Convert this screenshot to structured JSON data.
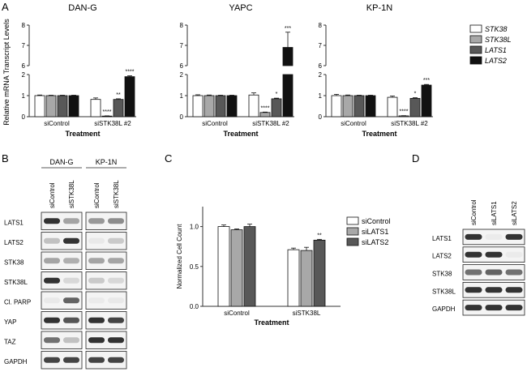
{
  "panel_labels": {
    "a": "A",
    "b": "B",
    "c": "C",
    "d": "D"
  },
  "colors": {
    "white": "#ffffff",
    "light_gray": "#a8a8a8",
    "dark_gray": "#585858",
    "black": "#111111"
  },
  "chart_data": [
    {
      "type": "bar",
      "panel": "A",
      "title": "DAN-G",
      "ylabel": "Relative mRNA Transcript Levels",
      "xlabel": "Treatment",
      "categories": [
        "siControl",
        "siSTK38L #2"
      ],
      "y_axis_break": {
        "lower": [
          0,
          2
        ],
        "upper": [
          6,
          8
        ]
      },
      "y_ticks": [
        "0",
        "1",
        "2",
        "6",
        "7",
        "8"
      ],
      "series": [
        {
          "name": "STK38",
          "values": [
            1.0,
            0.82
          ],
          "errors": [
            0.03,
            0.07
          ],
          "stars": [
            "",
            ""
          ]
        },
        {
          "name": "STK38L",
          "values": [
            1.0,
            0.03
          ],
          "errors": [
            0.02,
            0.01
          ],
          "stars": [
            "",
            "****"
          ]
        },
        {
          "name": "LATS1",
          "values": [
            1.0,
            0.82
          ],
          "errors": [
            0.02,
            0.03
          ],
          "stars": [
            "",
            "**"
          ]
        },
        {
          "name": "LATS2",
          "values": [
            1.0,
            1.9
          ],
          "errors": [
            0.02,
            0.04
          ],
          "stars": [
            "",
            "****"
          ]
        }
      ]
    },
    {
      "type": "bar",
      "panel": "A",
      "title": "YAPC",
      "xlabel": "Treatment",
      "categories": [
        "siControl",
        "siSTK38L #2"
      ],
      "y_axis_break": {
        "lower": [
          0,
          2
        ],
        "upper": [
          6,
          8
        ]
      },
      "y_ticks": [
        "0",
        "1",
        "2",
        "6",
        "7",
        "8"
      ],
      "series": [
        {
          "name": "STK38",
          "values": [
            1.0,
            1.03
          ],
          "errors": [
            0.04,
            0.1
          ],
          "stars": [
            "",
            ""
          ]
        },
        {
          "name": "STK38L",
          "values": [
            1.0,
            0.2
          ],
          "errors": [
            0.03,
            0.02
          ],
          "stars": [
            "",
            "****"
          ]
        },
        {
          "name": "LATS1",
          "values": [
            1.0,
            0.85
          ],
          "errors": [
            0.02,
            0.03
          ],
          "stars": [
            "",
            "*"
          ]
        },
        {
          "name": "LATS2",
          "values": [
            1.0,
            6.9
          ],
          "errors": [
            0.02,
            0.75
          ],
          "stars": [
            "",
            "***"
          ]
        }
      ]
    },
    {
      "type": "bar",
      "panel": "A",
      "title": "KP-1N",
      "xlabel": "Treatment",
      "categories": [
        "siControl",
        "siSTK38L #2"
      ],
      "y_axis_break": {
        "lower": [
          0,
          2
        ],
        "upper": [
          6,
          8
        ]
      },
      "y_ticks": [
        "0",
        "1",
        "2",
        "6",
        "7",
        "8"
      ],
      "series": [
        {
          "name": "STK38",
          "values": [
            1.0,
            0.92
          ],
          "errors": [
            0.06,
            0.06
          ],
          "stars": [
            "",
            ""
          ]
        },
        {
          "name": "STK38L",
          "values": [
            1.0,
            0.04
          ],
          "errors": [
            0.03,
            0.01
          ],
          "stars": [
            "",
            "****"
          ]
        },
        {
          "name": "LATS1",
          "values": [
            1.0,
            0.87
          ],
          "errors": [
            0.02,
            0.03
          ],
          "stars": [
            "",
            "*"
          ]
        },
        {
          "name": "LATS2",
          "values": [
            1.0,
            1.5
          ],
          "errors": [
            0.02,
            0.03
          ],
          "stars": [
            "",
            "***"
          ]
        }
      ]
    },
    {
      "type": "bar",
      "panel": "C",
      "xlabel": "Treatment",
      "ylabel": "Normalized Cell Count",
      "categories": [
        "siControl",
        "siSTK38L"
      ],
      "ylim": [
        0,
        1.25
      ],
      "y_ticks": [
        "0.0",
        "0.5",
        "1.0"
      ],
      "series": [
        {
          "name": "siControl",
          "values": [
            1.0,
            0.71
          ],
          "errors": [
            0.02,
            0.02
          ],
          "stars": [
            "",
            ""
          ]
        },
        {
          "name": "siLATS1",
          "values": [
            0.96,
            0.7
          ],
          "errors": [
            0.01,
            0.04
          ],
          "stars": [
            "",
            ""
          ]
        },
        {
          "name": "siLATS2",
          "values": [
            1.0,
            0.83
          ],
          "errors": [
            0.03,
            0.01
          ],
          "stars": [
            "",
            "**"
          ]
        }
      ]
    }
  ],
  "legend_a": [
    "STK38",
    "STK38L",
    "LATS1",
    "LATS2"
  ],
  "legend_c": [
    "siControl",
    "siLATS1",
    "siLATS2"
  ],
  "blot_b": {
    "groups": [
      {
        "name": "DAN-G",
        "lanes": [
          "siControl",
          "siSTK38L"
        ]
      },
      {
        "name": "KP-1N",
        "lanes": [
          "siControl",
          "siSTK38L"
        ]
      }
    ],
    "rows": [
      {
        "label": "LATS1",
        "intensity": [
          [
            0.9,
            0.5
          ],
          [
            0.55,
            0.6
          ]
        ]
      },
      {
        "label": "LATS2",
        "intensity": [
          [
            0.35,
            0.9
          ],
          [
            0.05,
            0.3
          ]
        ]
      },
      {
        "label": "STK38",
        "intensity": [
          [
            0.5,
            0.45
          ],
          [
            0.5,
            0.5
          ]
        ]
      },
      {
        "label": "STK38L",
        "intensity": [
          [
            0.9,
            0.2
          ],
          [
            0.3,
            0.2
          ]
        ]
      },
      {
        "label": "Cl. PARP",
        "intensity": [
          [
            0.05,
            0.75
          ],
          [
            0.03,
            0.05
          ]
        ]
      },
      {
        "label": "YAP",
        "intensity": [
          [
            0.9,
            0.8
          ],
          [
            0.9,
            0.85
          ]
        ]
      },
      {
        "label": "TAZ",
        "intensity": [
          [
            0.7,
            0.35
          ],
          [
            0.9,
            0.9
          ]
        ]
      },
      {
        "label": "GAPDH",
        "intensity": [
          [
            0.85,
            0.85
          ],
          [
            0.85,
            0.85
          ]
        ]
      }
    ]
  },
  "blot_d": {
    "lanes": [
      "siControl",
      "siLATS1",
      "siLATS2"
    ],
    "rows": [
      {
        "label": "LATS1",
        "intensity": [
          0.9,
          0.03,
          0.9
        ]
      },
      {
        "label": "LATS2",
        "intensity": [
          0.9,
          0.9,
          0.03
        ]
      },
      {
        "label": "STK38",
        "intensity": [
          0.7,
          0.75,
          0.7
        ]
      },
      {
        "label": "STK38L",
        "intensity": [
          0.9,
          0.9,
          0.9
        ]
      },
      {
        "label": "GAPDH",
        "intensity": [
          0.9,
          0.9,
          0.9
        ]
      }
    ]
  }
}
